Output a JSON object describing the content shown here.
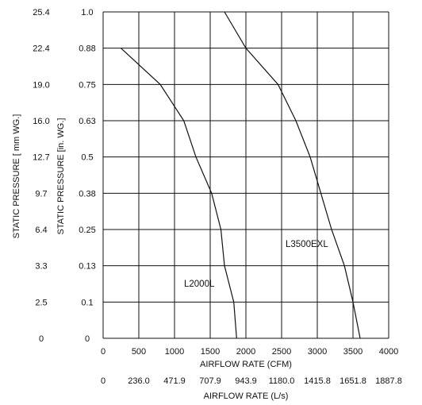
{
  "chart_data": {
    "type": "line",
    "xlabel": "AIRFLOW RATE (CFM)",
    "xlabel_secondary": "AIRFLOW RATE (L/s)",
    "ylabel": "STATIC PRESSURE [in. WG.]",
    "ylabel_secondary": "STATIC PRESSURE [ mm WG.]",
    "xlim": [
      0,
      4000
    ],
    "ylim": [
      0,
      1.0
    ],
    "grid": true,
    "x_ticks": [
      "0",
      "500",
      "1000",
      "1500",
      "2000",
      "2500",
      "3000",
      "3500",
      "4000"
    ],
    "x_ticks_secondary": [
      "0",
      "236.0",
      "471.9",
      "707.9",
      "943.9",
      "1180.0",
      "1415.8",
      "1651.8",
      "1887.8"
    ],
    "y_ticks": [
      "0",
      "0.1",
      "0.13",
      "0.25",
      "0.38",
      "0.5",
      "0.63",
      "0.75",
      "0.88",
      "1.0"
    ],
    "y_ticks_secondary": [
      "0",
      "2.5",
      "3.3",
      "6.4",
      "9.7",
      "12.7",
      "16.0",
      "19.0",
      "22.4",
      "25.4"
    ],
    "series": [
      {
        "name": "L2000L",
        "points": [
          [
            250,
            0.88
          ],
          [
            800,
            0.75
          ],
          [
            1130,
            0.63
          ],
          [
            1300,
            0.5
          ],
          [
            1520,
            0.38
          ],
          [
            1650,
            0.25
          ],
          [
            1700,
            0.13
          ],
          [
            1830,
            0.1
          ],
          [
            1870,
            0
          ]
        ]
      },
      {
        "name": "L3500EXL",
        "points": [
          [
            1700,
            1.0
          ],
          [
            2000,
            0.88
          ],
          [
            2450,
            0.75
          ],
          [
            2700,
            0.63
          ],
          [
            2900,
            0.5
          ],
          [
            3050,
            0.38
          ],
          [
            3200,
            0.25
          ],
          [
            3380,
            0.13
          ],
          [
            3500,
            0.1
          ],
          [
            3600,
            0
          ]
        ]
      }
    ]
  }
}
